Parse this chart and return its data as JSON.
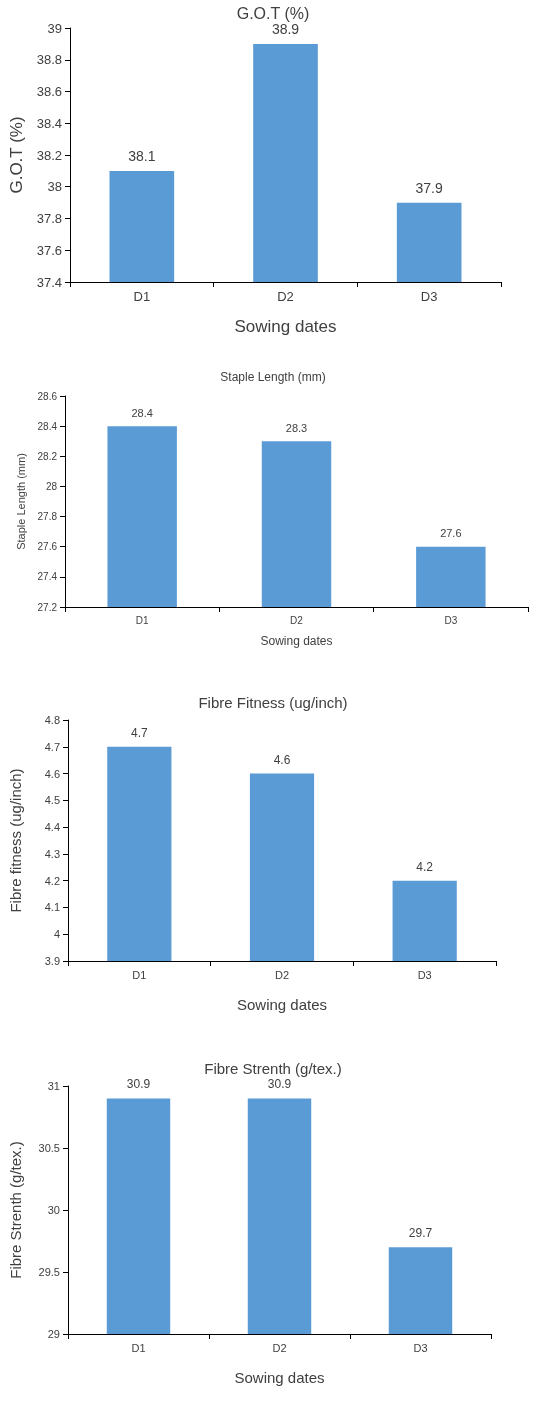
{
  "chart_data": [
    {
      "type": "bar",
      "title": "G.O.T (%)",
      "xlabel": "Sowing dates",
      "ylabel": "G.O.T (%)",
      "categories": [
        "D1",
        "D2",
        "D3"
      ],
      "values": [
        38.1,
        38.9,
        37.9
      ],
      "color": "#5b9bd5",
      "ylim": [
        37.4,
        39
      ],
      "yticks": [
        37.4,
        37.6,
        37.8,
        38,
        38.2,
        38.4,
        38.6,
        38.8,
        39
      ],
      "grid": false,
      "data_labels": true
    },
    {
      "type": "bar",
      "title": "Staple Length (mm)",
      "xlabel": "Sowing dates",
      "ylabel": "Staple Length (mm)",
      "categories": [
        "D1",
        "D2",
        "D3"
      ],
      "values": [
        28.4,
        28.3,
        27.6
      ],
      "color": "#5b9bd5",
      "ylim": [
        27.2,
        28.6
      ],
      "yticks": [
        27.2,
        27.4,
        27.6,
        27.8,
        28,
        28.2,
        28.4,
        28.6
      ],
      "grid": false,
      "data_labels": true
    },
    {
      "type": "bar",
      "title": "Fibre Fitness (ug/inch)",
      "xlabel": "Sowing dates",
      "ylabel": "Fibre fitness (ug/inch)",
      "categories": [
        "D1",
        "D2",
        "D3"
      ],
      "values": [
        4.7,
        4.6,
        4.2
      ],
      "color": "#5b9bd5",
      "ylim": [
        3.9,
        4.8
      ],
      "yticks": [
        3.9,
        4,
        4.1,
        4.2,
        4.3,
        4.4,
        4.5,
        4.6,
        4.7,
        4.8
      ],
      "grid": false,
      "data_labels": true
    },
    {
      "type": "bar",
      "title": "Fibre Strenth (g/tex.)",
      "xlabel": "Sowing dates",
      "ylabel": "Fibre Strenth (g/tex.)",
      "categories": [
        "D1",
        "D2",
        "D3"
      ],
      "values": [
        30.9,
        30.9,
        29.7
      ],
      "color": "#5b9bd5",
      "ylim": [
        29,
        31
      ],
      "yticks": [
        29,
        29.5,
        30,
        30.5,
        31
      ],
      "grid": false,
      "data_labels": true
    }
  ]
}
